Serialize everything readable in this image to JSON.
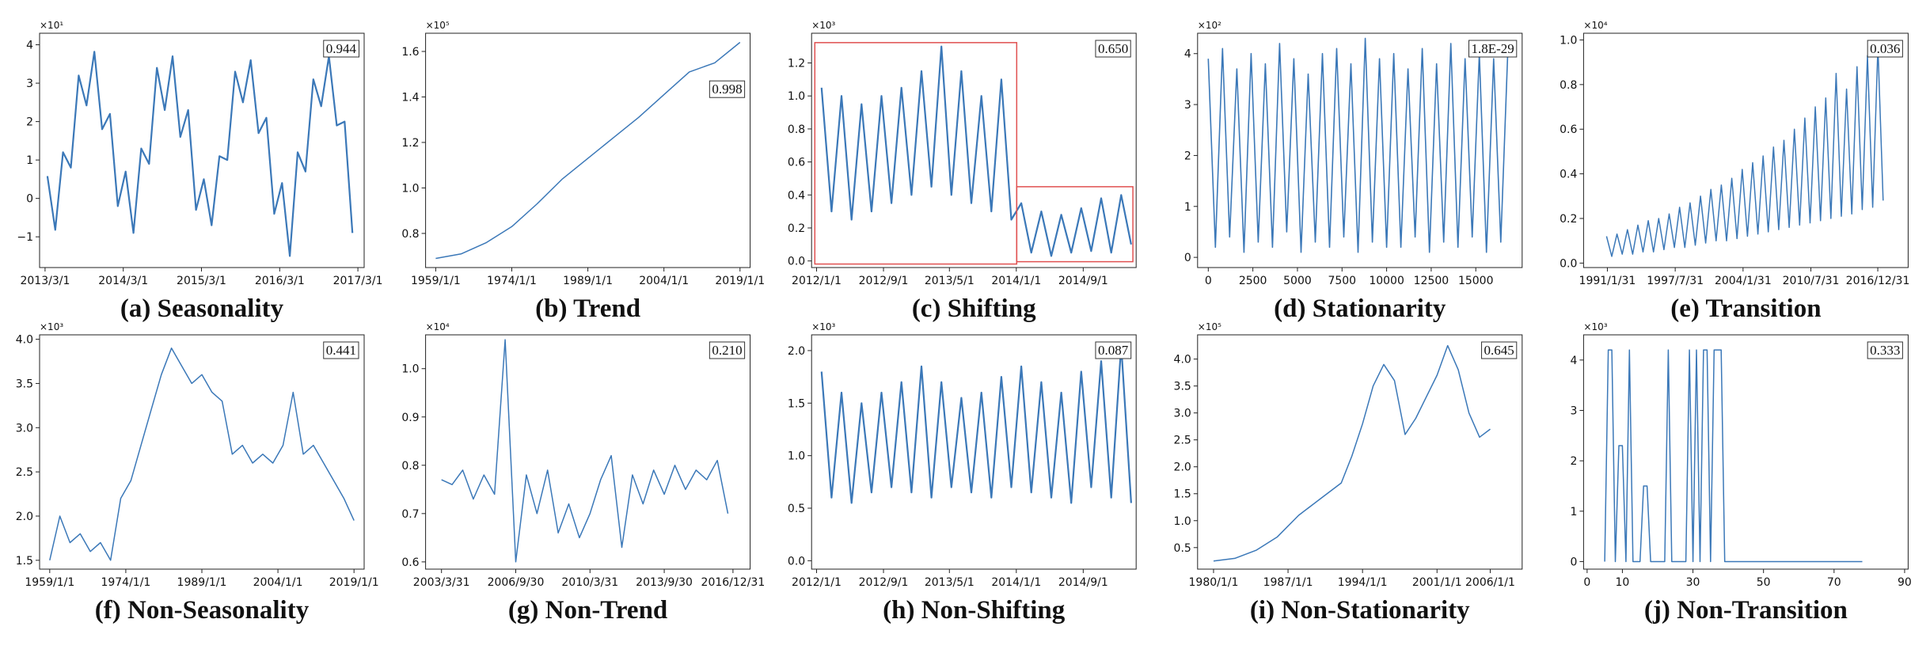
{
  "chart_data": [
    {
      "type": "line",
      "title": "(a) Seasonality",
      "annotation": "0.944",
      "y_scale_label": "×10¹",
      "color": "#3b78b8",
      "x": [
        2013.2,
        2013.3,
        2013.4,
        2013.5,
        2013.6,
        2013.7,
        2013.8,
        2013.9,
        2014.0,
        2014.1,
        2014.2,
        2014.3,
        2014.4,
        2014.5,
        2014.6,
        2014.7,
        2014.8,
        2014.9,
        2015.0,
        2015.1,
        2015.2,
        2015.3,
        2015.4,
        2015.5,
        2015.6,
        2015.7,
        2015.8,
        2015.9,
        2016.0,
        2016.1,
        2016.2,
        2016.3,
        2016.4,
        2016.5,
        2016.6,
        2016.7,
        2016.8,
        2016.9,
        2017.0,
        2017.1
      ],
      "values": [
        0.58,
        -0.82,
        1.2,
        0.8,
        3.2,
        2.42,
        3.82,
        1.8,
        2.2,
        -0.2,
        0.7,
        -0.9,
        1.3,
        0.9,
        3.4,
        2.3,
        3.7,
        1.6,
        2.3,
        -0.3,
        0.5,
        -0.7,
        1.1,
        1.0,
        3.3,
        2.5,
        3.6,
        1.7,
        2.1,
        -0.4,
        0.4,
        -1.5,
        1.2,
        0.7,
        3.1,
        2.4,
        3.7,
        1.9,
        2.0,
        -0.9
      ],
      "xlim": [
        2013.1,
        2017.25
      ],
      "ylim": [
        -1.8,
        4.3
      ],
      "xticks": [
        {
          "value": 2013.17,
          "label": "2013/3/1"
        },
        {
          "value": 2014.17,
          "label": "2014/3/1"
        },
        {
          "value": 2015.17,
          "label": "2015/3/1"
        },
        {
          "value": 2016.17,
          "label": "2016/3/1"
        },
        {
          "value": 2017.17,
          "label": "2017/3/1"
        }
      ],
      "yticks": [
        {
          "value": -1,
          "label": "−1"
        },
        0,
        1,
        2,
        3,
        4
      ]
    },
    {
      "type": "line",
      "title": "(b) Trend",
      "annotation": "0.998",
      "y_scale_label": "×10⁵",
      "color": "#3b78b8",
      "x": [
        1959,
        1964,
        1969,
        1974,
        1979,
        1984,
        1989,
        1994,
        1999,
        2004,
        2009,
        2014,
        2019
      ],
      "values": [
        0.69,
        0.71,
        0.76,
        0.83,
        0.93,
        1.04,
        1.13,
        1.22,
        1.31,
        1.41,
        1.51,
        1.55,
        1.64
      ],
      "xlim": [
        1957,
        2021
      ],
      "ylim": [
        0.65,
        1.68
      ],
      "xticks": [
        {
          "value": 1959,
          "label": "1959/1/1"
        },
        {
          "value": 1974,
          "label": "1974/1/1"
        },
        {
          "value": 1989,
          "label": "1989/1/1"
        },
        {
          "value": 2004,
          "label": "2004/1/1"
        },
        {
          "value": 2019,
          "label": "2019/1/1"
        }
      ],
      "yticks": [
        0.8,
        {
          "value": 1,
          "label": "1.0"
        },
        1.2,
        1.4,
        1.6
      ]
    },
    {
      "type": "line",
      "title": "(c) Shifting",
      "annotation": "0.650",
      "y_scale_label": "×10³",
      "color": "#3b78b8",
      "x": [
        2012.05,
        2012.15,
        2012.25,
        2012.35,
        2012.45,
        2012.55,
        2012.65,
        2012.75,
        2012.85,
        2012.95,
        2013.05,
        2013.15,
        2013.25,
        2013.35,
        2013.45,
        2013.55,
        2013.65,
        2013.75,
        2013.85,
        2013.95,
        2014.05,
        2014.15,
        2014.25,
        2014.35,
        2014.45,
        2014.55,
        2014.65,
        2014.75,
        2014.85,
        2014.95,
        2015.05,
        2015.15
      ],
      "values": [
        1.05,
        0.3,
        1.0,
        0.25,
        0.95,
        0.3,
        1.0,
        0.35,
        1.05,
        0.4,
        1.15,
        0.45,
        1.3,
        0.4,
        1.15,
        0.35,
        1.0,
        0.3,
        1.1,
        0.25,
        0.35,
        0.05,
        0.3,
        0.03,
        0.28,
        0.05,
        0.32,
        0.06,
        0.38,
        0.05,
        0.4,
        0.1
      ],
      "xlim": [
        2011.95,
        2015.2
      ],
      "ylim": [
        -0.04,
        1.38
      ],
      "xticks": [
        {
          "value": 2012.0,
          "label": "2012/1/1"
        },
        {
          "value": 2012.67,
          "label": "2012/9/1"
        },
        {
          "value": 2013.33,
          "label": "2013/5/1"
        },
        {
          "value": 2014.0,
          "label": "2014/1/1"
        },
        {
          "value": 2014.67,
          "label": "2014/9/1"
        }
      ],
      "yticks": [
        {
          "value": 0,
          "label": "0.0"
        },
        0.2,
        0.4,
        0.6,
        0.8,
        {
          "value": 1,
          "label": "1.0"
        },
        1.2
      ]
    },
    {
      "type": "line",
      "title": "(d) Stationarity",
      "annotation": "1.8E-29",
      "y_scale_label": "×10²",
      "color": "#3b78b8",
      "x": [
        0,
        400,
        800,
        1200,
        1600,
        2000,
        2400,
        2800,
        3200,
        3600,
        4000,
        4400,
        4800,
        5200,
        5600,
        6000,
        6400,
        6800,
        7200,
        7600,
        8000,
        8400,
        8800,
        9200,
        9600,
        10000,
        10400,
        10800,
        11200,
        11600,
        12000,
        12400,
        12800,
        13200,
        13600,
        14000,
        14400,
        14800,
        15200,
        15600,
        16000,
        16400,
        16800
      ],
      "values": [
        3.9,
        0.2,
        4.1,
        0.4,
        3.7,
        0.1,
        4.0,
        0.3,
        3.8,
        0.2,
        4.2,
        0.5,
        3.9,
        0.1,
        3.6,
        0.3,
        4.0,
        0.2,
        4.1,
        0.4,
        3.8,
        0.1,
        4.3,
        0.3,
        3.9,
        0.2,
        4.0,
        0.2,
        3.7,
        0.4,
        4.1,
        0.1,
        3.8,
        0.3,
        4.2,
        0.2,
        3.9,
        0.4,
        4.0,
        0.1,
        3.9,
        0.3,
        4.1
      ],
      "xlim": [
        -600,
        17600
      ],
      "ylim": [
        -0.2,
        4.4
      ],
      "xticks": [
        0,
        2500,
        5000,
        7500,
        10000,
        12500,
        15000
      ],
      "yticks": [
        0,
        1,
        2,
        3,
        4
      ]
    },
    {
      "type": "line",
      "title": "(e) Transition",
      "annotation": "0.036",
      "y_scale_label": "×10⁴",
      "color": "#3b78b8",
      "x": [
        1991,
        1991.5,
        1992,
        1992.5,
        1993,
        1993.5,
        1994,
        1994.5,
        1995,
        1995.5,
        1996,
        1996.5,
        1997,
        1997.5,
        1998,
        1998.5,
        1999,
        1999.5,
        2000,
        2000.5,
        2001,
        2001.5,
        2002,
        2002.5,
        2003,
        2003.5,
        2004,
        2004.5,
        2005,
        2005.5,
        2006,
        2006.5,
        2007,
        2007.5,
        2008,
        2008.5,
        2009,
        2009.5,
        2010,
        2010.5,
        2011,
        2011.5,
        2012,
        2012.5,
        2013,
        2013.5,
        2014,
        2014.5,
        2015,
        2015.5,
        2016,
        2016.5,
        2017,
        2017.5
      ],
      "values": [
        0.12,
        0.03,
        0.13,
        0.04,
        0.15,
        0.04,
        0.17,
        0.05,
        0.19,
        0.05,
        0.2,
        0.06,
        0.22,
        0.07,
        0.25,
        0.07,
        0.27,
        0.08,
        0.3,
        0.09,
        0.33,
        0.1,
        0.35,
        0.1,
        0.38,
        0.11,
        0.42,
        0.12,
        0.45,
        0.13,
        0.48,
        0.14,
        0.52,
        0.15,
        0.55,
        0.16,
        0.6,
        0.17,
        0.65,
        0.18,
        0.7,
        0.19,
        0.74,
        0.2,
        0.85,
        0.21,
        0.78,
        0.22,
        0.88,
        0.24,
        0.93,
        0.25,
        0.97,
        0.28
      ],
      "xlim": [
        1988.8,
        2019.9
      ],
      "ylim": [
        -0.02,
        1.03
      ],
      "xticks": [
        {
          "value": 1991.08,
          "label": "1991/1/31"
        },
        {
          "value": 1997.58,
          "label": "1997/7/31"
        },
        {
          "value": 2004.08,
          "label": "2004/1/31"
        },
        {
          "value": 2010.58,
          "label": "2010/7/31"
        },
        {
          "value": 2016.99,
          "label": "2016/12/31"
        }
      ],
      "yticks": [
        {
          "value": 0,
          "label": "0.0"
        },
        0.2,
        0.4,
        0.6,
        0.8,
        {
          "value": 1,
          "label": "1.0"
        }
      ]
    },
    {
      "type": "line",
      "title": "(f) Non-Seasonality",
      "annotation": "0.441",
      "y_scale_label": "×10³",
      "color": "#3b78b8",
      "x": [
        1959,
        1961,
        1963,
        1965,
        1967,
        1969,
        1971,
        1973,
        1975,
        1977,
        1979,
        1981,
        1983,
        1985,
        1987,
        1989,
        1991,
        1993,
        1995,
        1997,
        1999,
        2001,
        2003,
        2005,
        2007,
        2009,
        2011,
        2013,
        2015,
        2017,
        2019
      ],
      "values": [
        1.5,
        2.0,
        1.7,
        1.8,
        1.6,
        1.7,
        1.5,
        2.2,
        2.4,
        2.8,
        3.2,
        3.6,
        3.9,
        3.7,
        3.5,
        3.6,
        3.4,
        3.3,
        2.7,
        2.8,
        2.6,
        2.7,
        2.6,
        2.8,
        3.4,
        2.7,
        2.8,
        2.6,
        2.4,
        2.2,
        1.95
      ],
      "xlim": [
        1957,
        2021
      ],
      "ylim": [
        1.4,
        4.05
      ],
      "xticks": [
        {
          "value": 1959,
          "label": "1959/1/1"
        },
        {
          "value": 1974,
          "label": "1974/1/1"
        },
        {
          "value": 1989,
          "label": "1989/1/1"
        },
        {
          "value": 2004,
          "label": "2004/1/1"
        },
        {
          "value": 2019,
          "label": "2019/1/1"
        }
      ],
      "yticks": [
        1.5,
        {
          "value": 2,
          "label": "2.0"
        },
        2.5,
        {
          "value": 3,
          "label": "3.0"
        },
        3.5,
        {
          "value": 4,
          "label": "4.0"
        }
      ]
    },
    {
      "type": "line",
      "title": "(g) Non-Trend",
      "annotation": "0.210",
      "y_scale_label": "×10⁴",
      "color": "#3b78b8",
      "x": [
        2003.25,
        2003.75,
        2004.25,
        2004.75,
        2005.25,
        2005.75,
        2006.25,
        2006.75,
        2007.25,
        2007.75,
        2008.25,
        2008.75,
        2009.25,
        2009.75,
        2010.25,
        2010.75,
        2011.25,
        2011.75,
        2012.25,
        2012.75,
        2013.25,
        2013.75,
        2014.25,
        2014.75,
        2015.25,
        2015.75,
        2016.25,
        2016.75
      ],
      "values": [
        0.77,
        0.76,
        0.79,
        0.73,
        0.78,
        0.74,
        1.06,
        0.6,
        0.78,
        0.7,
        0.79,
        0.66,
        0.72,
        0.65,
        0.7,
        0.77,
        0.82,
        0.63,
        0.78,
        0.72,
        0.79,
        0.74,
        0.8,
        0.75,
        0.79,
        0.77,
        0.81,
        0.7
      ],
      "xlim": [
        2002.5,
        2017.8
      ],
      "ylim": [
        0.585,
        1.07
      ],
      "xticks": [
        {
          "value": 2003.25,
          "label": "2003/3/31"
        },
        {
          "value": 2006.75,
          "label": "2006/9/30"
        },
        {
          "value": 2010.25,
          "label": "2010/3/31"
        },
        {
          "value": 2013.75,
          "label": "2013/9/30"
        },
        {
          "value": 2016.99,
          "label": "2016/12/31"
        }
      ],
      "yticks": [
        0.6,
        0.7,
        0.8,
        0.9,
        {
          "value": 1,
          "label": "1.0"
        }
      ]
    },
    {
      "type": "line",
      "title": "(h) Non-Shifting",
      "annotation": "0.087",
      "y_scale_label": "×10³",
      "color": "#3b78b8",
      "x": [
        2012.05,
        2012.15,
        2012.25,
        2012.35,
        2012.45,
        2012.55,
        2012.65,
        2012.75,
        2012.85,
        2012.95,
        2013.05,
        2013.15,
        2013.25,
        2013.35,
        2013.45,
        2013.55,
        2013.65,
        2013.75,
        2013.85,
        2013.95,
        2014.05,
        2014.15,
        2014.25,
        2014.35,
        2014.45,
        2014.55,
        2014.65,
        2014.75,
        2014.85,
        2014.95,
        2015.05,
        2015.15
      ],
      "values": [
        1.8,
        0.6,
        1.6,
        0.55,
        1.5,
        0.65,
        1.6,
        0.7,
        1.7,
        0.65,
        1.85,
        0.6,
        1.7,
        0.7,
        1.55,
        0.65,
        1.6,
        0.6,
        1.75,
        0.7,
        1.85,
        0.65,
        1.7,
        0.6,
        1.6,
        0.55,
        1.8,
        0.7,
        1.9,
        0.6,
        2.05,
        0.55
      ],
      "xlim": [
        2011.95,
        2015.2
      ],
      "ylim": [
        -0.08,
        2.15
      ],
      "xticks": [
        {
          "value": 2012.0,
          "label": "2012/1/1"
        },
        {
          "value": 2012.67,
          "label": "2012/9/1"
        },
        {
          "value": 2013.33,
          "label": "2013/5/1"
        },
        {
          "value": 2014.0,
          "label": "2014/1/1"
        },
        {
          "value": 2014.67,
          "label": "2014/9/1"
        }
      ],
      "yticks": [
        {
          "value": 0,
          "label": "0.0"
        },
        0.5,
        {
          "value": 1,
          "label": "1.0"
        },
        1.5,
        {
          "value": 2,
          "label": "2.0"
        }
      ]
    },
    {
      "type": "line",
      "title": "(i) Non-Stationarity",
      "annotation": "0.645",
      "y_scale_label": "×10⁵",
      "color": "#3b78b8",
      "x": [
        1980,
        1982,
        1984,
        1986,
        1988,
        1990,
        1992,
        1993,
        1994,
        1995,
        1996,
        1997,
        1998,
        1999,
        2000,
        2001,
        2002,
        2003,
        2004,
        2005,
        2006
      ],
      "values": [
        0.25,
        0.3,
        0.45,
        0.7,
        1.1,
        1.4,
        1.7,
        2.2,
        2.8,
        3.5,
        3.9,
        3.6,
        2.6,
        2.9,
        3.3,
        3.7,
        4.25,
        3.8,
        3.0,
        2.55,
        2.7
      ],
      "xlim": [
        1978.5,
        2009
      ],
      "ylim": [
        0.1,
        4.45
      ],
      "xticks": [
        {
          "value": 1980,
          "label": "1980/1/1"
        },
        {
          "value": 1987,
          "label": "1987/1/1"
        },
        {
          "value": 1994,
          "label": "1994/1/1"
        },
        {
          "value": 2001,
          "label": "2001/1/1"
        },
        {
          "value": 2006,
          "label": "2006/1/1"
        }
      ],
      "yticks": [
        0.5,
        {
          "value": 1,
          "label": "1.0"
        },
        1.5,
        {
          "value": 2,
          "label": "2.0"
        },
        2.5,
        {
          "value": 3,
          "label": "3.0"
        },
        3.5,
        {
          "value": 4,
          "label": "4.0"
        }
      ]
    },
    {
      "type": "line",
      "title": "(j) Non-Transition",
      "annotation": "0.333",
      "y_scale_label": "×10³",
      "color": "#3b78b8",
      "x": [
        5,
        6,
        7,
        8,
        9,
        10,
        11,
        12,
        13,
        15,
        16,
        17,
        18,
        22,
        23,
        24,
        28,
        29,
        30,
        31,
        32,
        33,
        34,
        35,
        36,
        38,
        39,
        78
      ],
      "values": [
        0,
        4.2,
        4.2,
        0,
        2.3,
        2.3,
        0,
        4.2,
        0,
        0,
        1.5,
        1.5,
        0,
        0,
        4.2,
        0,
        0,
        4.2,
        0,
        4.2,
        0,
        4.2,
        4.2,
        0,
        4.2,
        4.2,
        0,
        0
      ],
      "xlim": [
        -1,
        91
      ],
      "ylim": [
        -0.15,
        4.5
      ],
      "xticks": [
        0,
        10,
        30,
        50,
        70,
        90
      ],
      "yticks": [
        0,
        1,
        2,
        3,
        4
      ]
    }
  ]
}
